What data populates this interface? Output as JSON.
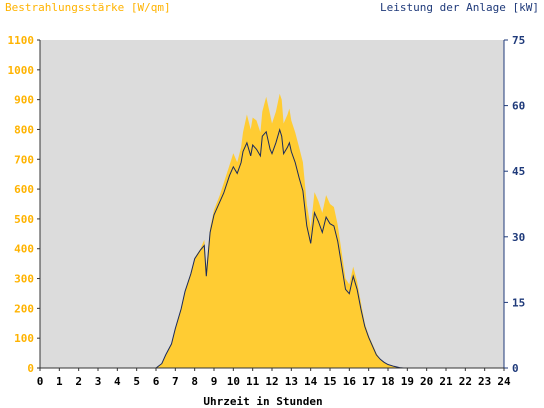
{
  "chart_data": {
    "type": "area",
    "title_left": "Bestrahlungsstärke [W/qm]",
    "title_right": "Leistung der Anlage [kW]",
    "xlabel": "Uhrzeit in Stunden",
    "xlim": [
      0,
      24
    ],
    "x_ticks": [
      "0",
      "1",
      "2",
      "3",
      "4",
      "5",
      "6",
      "7",
      "8",
      "9",
      "10",
      "11",
      "12",
      "13",
      "14",
      "15",
      "16",
      "17",
      "18",
      "19",
      "20",
      "21",
      "22",
      "23",
      "24"
    ],
    "y_left": {
      "lim": [
        0,
        1100
      ],
      "ticks": [
        "0",
        "100",
        "200",
        "300",
        "400",
        "500",
        "600",
        "700",
        "800",
        "900",
        "1000",
        "1100"
      ]
    },
    "y_right": {
      "lim": [
        0,
        75
      ],
      "ticks": [
        "0",
        "15",
        "30",
        "45",
        "60",
        "75"
      ]
    },
    "grid": false,
    "colors": {
      "plot_bg": "#dcdcdc",
      "irradiance_fill": "#ffcc33",
      "power_line": "#1a2a5c",
      "left_axis": "#ffb300",
      "right_axis": "#1f3a7a"
    },
    "series": [
      {
        "name": "Bestrahlungsstärke",
        "axis": "left",
        "style": "area",
        "x": [
          0,
          6.0,
          6.3,
          6.5,
          6.8,
          7.0,
          7.3,
          7.5,
          7.8,
          8.0,
          8.3,
          8.5,
          8.6,
          8.8,
          9.0,
          9.3,
          9.5,
          9.8,
          10.0,
          10.2,
          10.4,
          10.5,
          10.7,
          10.9,
          11.0,
          11.2,
          11.4,
          11.5,
          11.7,
          11.9,
          12.0,
          12.2,
          12.4,
          12.5,
          12.6,
          12.8,
          12.9,
          13.0,
          13.2,
          13.4,
          13.6,
          13.8,
          14.0,
          14.2,
          14.4,
          14.6,
          14.8,
          15.0,
          15.2,
          15.4,
          15.6,
          15.8,
          16.0,
          16.2,
          16.4,
          16.6,
          16.8,
          17.0,
          17.2,
          17.4,
          17.6,
          17.8,
          18.0,
          18.3,
          18.6,
          18.8,
          19.0,
          24
        ],
        "y": [
          0,
          0,
          15,
          40,
          80,
          130,
          200,
          260,
          320,
          370,
          400,
          430,
          340,
          470,
          530,
          580,
          620,
          680,
          720,
          690,
          740,
          790,
          850,
          800,
          840,
          830,
          790,
          860,
          910,
          850,
          820,
          860,
          920,
          900,
          820,
          850,
          870,
          830,
          790,
          740,
          690,
          550,
          470,
          590,
          560,
          520,
          580,
          550,
          540,
          480,
          390,
          300,
          280,
          340,
          290,
          220,
          150,
          110,
          80,
          50,
          30,
          20,
          10,
          5,
          2,
          0,
          0,
          0
        ]
      },
      {
        "name": "Leistung der Anlage",
        "axis": "right",
        "style": "line",
        "x": [
          0,
          6.0,
          6.3,
          6.5,
          6.8,
          7.0,
          7.3,
          7.5,
          7.8,
          8.0,
          8.3,
          8.5,
          8.6,
          8.8,
          9.0,
          9.3,
          9.5,
          9.8,
          10.0,
          10.2,
          10.4,
          10.5,
          10.7,
          10.9,
          11.0,
          11.2,
          11.4,
          11.5,
          11.7,
          11.9,
          12.0,
          12.2,
          12.4,
          12.5,
          12.6,
          12.8,
          12.9,
          13.0,
          13.2,
          13.4,
          13.6,
          13.8,
          14.0,
          14.2,
          14.4,
          14.6,
          14.8,
          15.0,
          15.2,
          15.4,
          15.6,
          15.8,
          16.0,
          16.2,
          16.4,
          16.6,
          16.8,
          17.0,
          17.2,
          17.4,
          17.6,
          17.8,
          18.0,
          18.3,
          18.6,
          18.8,
          19.0,
          24
        ],
        "y": [
          0,
          0,
          1,
          3,
          5.5,
          9,
          13.5,
          17.5,
          21.5,
          25,
          27,
          28,
          21,
          31,
          35,
          38,
          40,
          44,
          46,
          44.5,
          47,
          49.5,
          51.5,
          48.5,
          51,
          50,
          48.5,
          53,
          54,
          50,
          49,
          51.5,
          54.5,
          53,
          49,
          50.5,
          51.5,
          49.5,
          47,
          43.5,
          40.5,
          32.5,
          28.5,
          35.5,
          33.5,
          31,
          34.5,
          33,
          32.5,
          29,
          23.5,
          18,
          17,
          21,
          18,
          13.5,
          9.5,
          7,
          5,
          3,
          2,
          1.3,
          0.8,
          0.4,
          0.1,
          0,
          0,
          0
        ]
      }
    ]
  }
}
